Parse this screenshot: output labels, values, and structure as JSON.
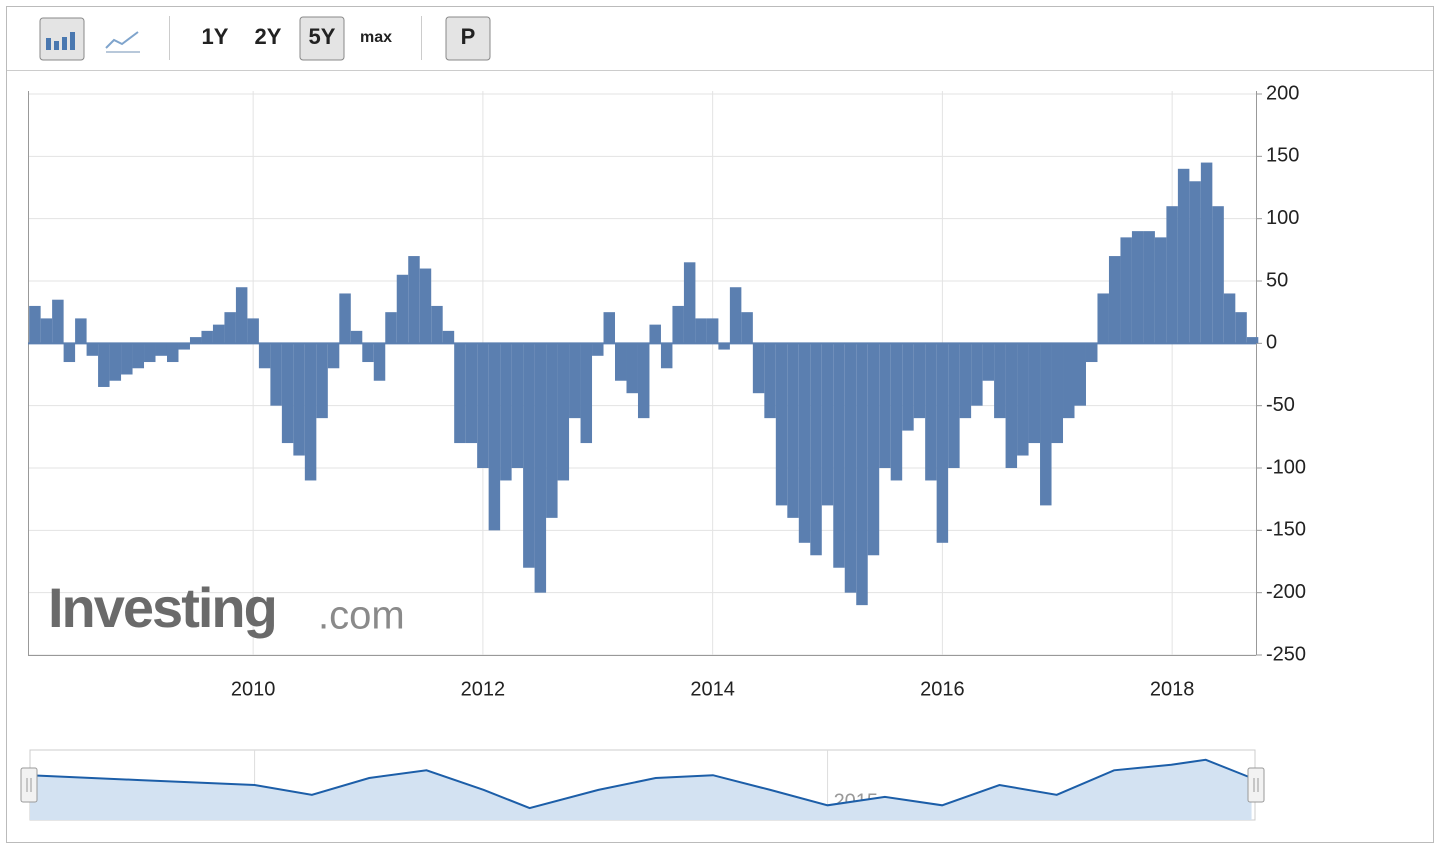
{
  "toolbar": {
    "ranges": [
      "1Y",
      "2Y",
      "5Y",
      "max"
    ],
    "active_range": "5Y",
    "button": "P"
  },
  "watermark": {
    "brand": "Investing",
    "suffix": ".com"
  },
  "chart_data": [
    {
      "type": "bar",
      "color": "#5b7fb0",
      "x": [
        2008.1,
        2008.2,
        2008.3,
        2008.4,
        2008.5,
        2008.6,
        2008.7,
        2008.8,
        2008.9,
        2009.0,
        2009.1,
        2009.2,
        2009.3,
        2009.4,
        2009.5,
        2009.6,
        2009.7,
        2009.8,
        2009.9,
        2010.0,
        2010.1,
        2010.2,
        2010.3,
        2010.4,
        2010.5,
        2010.6,
        2010.7,
        2010.8,
        2010.9,
        2011.0,
        2011.1,
        2011.2,
        2011.3,
        2011.4,
        2011.5,
        2011.6,
        2011.7,
        2011.8,
        2011.9,
        2012.0,
        2012.1,
        2012.2,
        2012.3,
        2012.4,
        2012.5,
        2012.6,
        2012.7,
        2012.8,
        2012.9,
        2013.0,
        2013.1,
        2013.2,
        2013.3,
        2013.4,
        2013.5,
        2013.6,
        2013.7,
        2013.8,
        2013.9,
        2014.0,
        2014.1,
        2014.2,
        2014.3,
        2014.4,
        2014.5,
        2014.6,
        2014.7,
        2014.8,
        2014.9,
        2015.0,
        2015.1,
        2015.2,
        2015.3,
        2015.4,
        2015.5,
        2015.6,
        2015.7,
        2015.8,
        2015.9,
        2016.0,
        2016.1,
        2016.2,
        2016.3,
        2016.4,
        2016.5,
        2016.6,
        2016.7,
        2016.8,
        2016.9,
        2017.0,
        2017.1,
        2017.2,
        2017.3,
        2017.4,
        2017.5,
        2017.6,
        2017.7,
        2017.8,
        2017.9,
        2018.0,
        2018.1,
        2018.2,
        2018.3,
        2018.4,
        2018.5,
        2018.6,
        2018.7
      ],
      "values": [
        30,
        20,
        35,
        -15,
        20,
        -10,
        -35,
        -30,
        -25,
        -20,
        -15,
        -10,
        -15,
        -5,
        5,
        10,
        15,
        25,
        45,
        20,
        -20,
        -50,
        -80,
        -90,
        -110,
        -60,
        -20,
        40,
        10,
        -15,
        -30,
        25,
        55,
        70,
        60,
        30,
        10,
        -80,
        -80,
        -100,
        -150,
        -110,
        -100,
        -180,
        -200,
        -140,
        -110,
        -60,
        -80,
        -10,
        25,
        -30,
        -40,
        -60,
        15,
        -20,
        30,
        65,
        20,
        20,
        -5,
        45,
        25,
        -40,
        -60,
        -130,
        -140,
        -160,
        -170,
        -130,
        -180,
        -200,
        -210,
        -170,
        -100,
        -110,
        -70,
        -60,
        -110,
        -160,
        -100,
        -60,
        -50,
        -30,
        -60,
        -100,
        -90,
        -80,
        -130,
        -80,
        -60,
        -50,
        -15,
        40,
        70,
        85,
        90,
        90,
        85,
        110,
        140,
        130,
        145,
        110,
        40,
        25,
        5
      ],
      "xlim": [
        2008.04,
        2018.73
      ],
      "ylim": [
        -250,
        200
      ],
      "xticks": [
        2010,
        2012,
        2014,
        2016,
        2018
      ],
      "yticks": [
        200,
        150,
        100,
        50,
        0,
        -50,
        -100,
        -150,
        -200,
        -250
      ],
      "grid": true
    },
    {
      "type": "line",
      "color": "#1c5ea8",
      "x": [
        2008.04,
        2009,
        2010,
        2010.5,
        2011,
        2011.5,
        2012,
        2012.4,
        2013,
        2013.5,
        2014,
        2014.5,
        2015,
        2015.5,
        2016,
        2016.5,
        2017,
        2017.5,
        2018,
        2018.3,
        2018.7
      ],
      "values": [
        64,
        57,
        50,
        36,
        60,
        71,
        43,
        17,
        43,
        60,
        64,
        43,
        21,
        33,
        21,
        50,
        36,
        71,
        79,
        86,
        60
      ],
      "xlim": [
        2008.04,
        2018.73
      ],
      "ylim": [
        0,
        100
      ],
      "xticks": [
        2010,
        2015
      ]
    }
  ]
}
